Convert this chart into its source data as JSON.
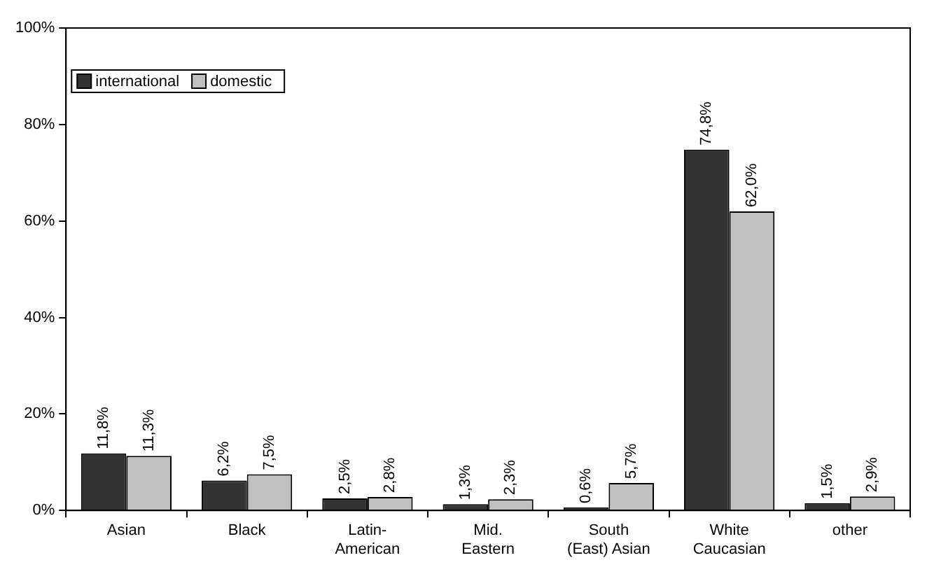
{
  "chart_data": {
    "type": "bar",
    "categories": [
      "Asian",
      "Black",
      "Latin-\nAmerican",
      "Mid.\nEastern",
      "South\n(East) Asian",
      "White\nCaucasian",
      "other"
    ],
    "series": [
      {
        "name": "international",
        "color": "#333333",
        "values": [
          11.8,
          6.2,
          2.5,
          1.3,
          0.6,
          74.8,
          1.5
        ],
        "value_labels": [
          "11,8%",
          "6,2%",
          "2,5%",
          "1,3%",
          "0,6%",
          "74,8%",
          "1,5%"
        ]
      },
      {
        "name": "domestic",
        "color": "#c0c0c0",
        "values": [
          11.3,
          7.5,
          2.8,
          2.3,
          5.7,
          62.0,
          2.9
        ],
        "value_labels": [
          "11,3%",
          "7,5%",
          "2,8%",
          "2,3%",
          "5,7%",
          "62,0%",
          "2,9%"
        ]
      }
    ],
    "ylim": [
      0,
      100
    ],
    "yticks": [
      {
        "value": 0,
        "label": "0%"
      },
      {
        "value": 20,
        "label": "20%"
      },
      {
        "value": 40,
        "label": "40%"
      },
      {
        "value": 60,
        "label": "60%"
      },
      {
        "value": 80,
        "label": "80%"
      },
      {
        "value": 100,
        "label": "100%"
      }
    ],
    "grid": false,
    "legend": "top left"
  }
}
